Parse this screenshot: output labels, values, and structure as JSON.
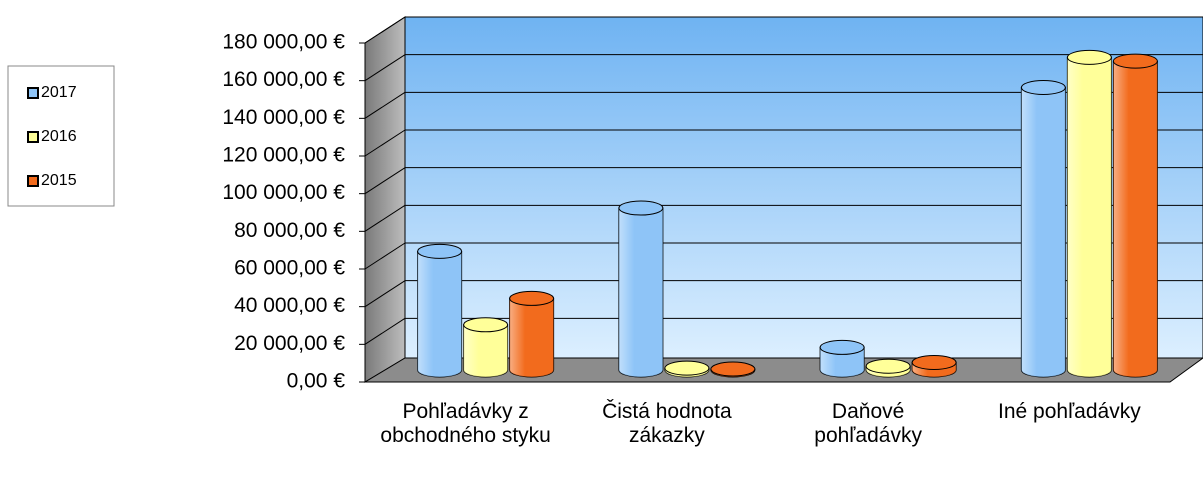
{
  "chart_data": {
    "type": "bar",
    "categories": [
      "Pohľadávky z obchodného styku",
      "Čistá hodnota zákazky",
      "Daňové pohľadávky",
      "Iné pohľadávky"
    ],
    "series": [
      {
        "name": "2017",
        "color": "#8ec4f7",
        "values": [
          63000,
          86000,
          12000,
          150000
        ]
      },
      {
        "name": "2016",
        "color": "#ffff99",
        "values": [
          24000,
          1000,
          2000,
          166000
        ]
      },
      {
        "name": "2015",
        "color": "#f26b1d",
        "values": [
          38000,
          500,
          4000,
          164000
        ]
      }
    ],
    "ylim": [
      0,
      180000
    ],
    "yticks": [
      {
        "value": 0,
        "label": "0,00 €"
      },
      {
        "value": 20000,
        "label": "20 000,00 €"
      },
      {
        "value": 40000,
        "label": "40 000,00 €"
      },
      {
        "value": 60000,
        "label": "60 000,00 €"
      },
      {
        "value": 80000,
        "label": "80 000,00 €"
      },
      {
        "value": 100000,
        "label": "100 000,00 €"
      },
      {
        "value": 120000,
        "label": "120 000,00 €"
      },
      {
        "value": 140000,
        "label": "140 000,00 €"
      },
      {
        "value": 160000,
        "label": "160 000,00 €"
      },
      {
        "value": 180000,
        "label": "180 000,00 €"
      }
    ],
    "grid": true,
    "legend": "left"
  }
}
